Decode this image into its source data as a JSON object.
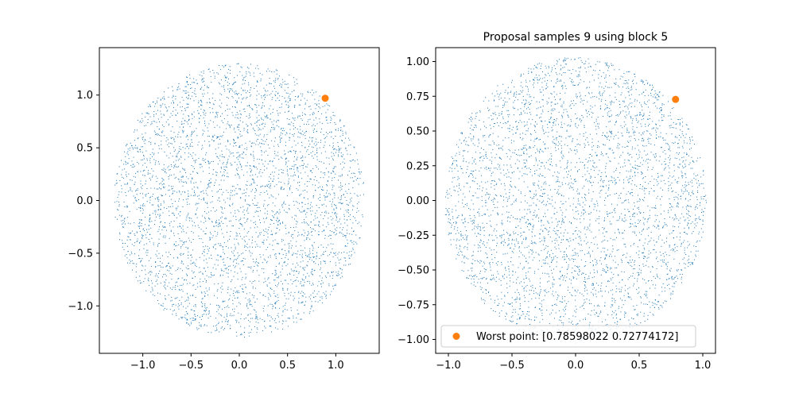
{
  "colors": {
    "scatter": "#1f77b4",
    "worst": "#ff7f0e",
    "axes": "#000000",
    "legend_border": "#cccccc"
  },
  "chart_data": [
    {
      "type": "scatter",
      "title": "",
      "xlabel": "",
      "ylabel": "",
      "xlim": [
        -1.45,
        1.45
      ],
      "ylim": [
        -1.45,
        1.45
      ],
      "xticks": [
        -1.0,
        -0.5,
        0.0,
        0.5,
        1.0
      ],
      "xtick_labels": [
        "−1.0",
        "−0.5",
        "0.0",
        "0.5",
        "1.0"
      ],
      "yticks": [
        -1.0,
        -0.5,
        0.0,
        0.5,
        1.0
      ],
      "ytick_labels": [
        "−1.0",
        "−0.5",
        "0.0",
        "0.5",
        "1.0"
      ],
      "grid": false,
      "samples": {
        "distribution": "uniform-disk",
        "center": [
          0,
          0
        ],
        "radius": 1.3,
        "count": 4000,
        "marker": "pixel"
      },
      "highlight": {
        "x": 0.89,
        "y": 0.97
      }
    },
    {
      "type": "scatter",
      "title": "Proposal samples 9 using block 5",
      "xlabel": "",
      "ylabel": "",
      "xlim": [
        -1.1,
        1.1
      ],
      "ylim": [
        -1.1,
        1.1
      ],
      "xticks": [
        -1.0,
        -0.5,
        0.0,
        0.5,
        1.0
      ],
      "xtick_labels": [
        "−1.0",
        "−0.5",
        "0.0",
        "0.5",
        "1.0"
      ],
      "yticks": [
        -1.0,
        -0.75,
        -0.5,
        -0.25,
        0.0,
        0.25,
        0.5,
        0.75,
        1.0
      ],
      "ytick_labels": [
        "−1.00",
        "−0.75",
        "−0.50",
        "−0.25",
        "0.00",
        "0.25",
        "0.50",
        "0.75",
        "1.00"
      ],
      "grid": false,
      "samples": {
        "distribution": "uniform-disk",
        "center": [
          0,
          0
        ],
        "radius": 1.03,
        "count": 4000,
        "marker": "pixel"
      },
      "highlight": {
        "x": 0.78598022,
        "y": 0.72774172
      },
      "legend": {
        "placement": "lower-left",
        "label": "Worst point: [0.78598022 0.72774172]"
      }
    }
  ]
}
